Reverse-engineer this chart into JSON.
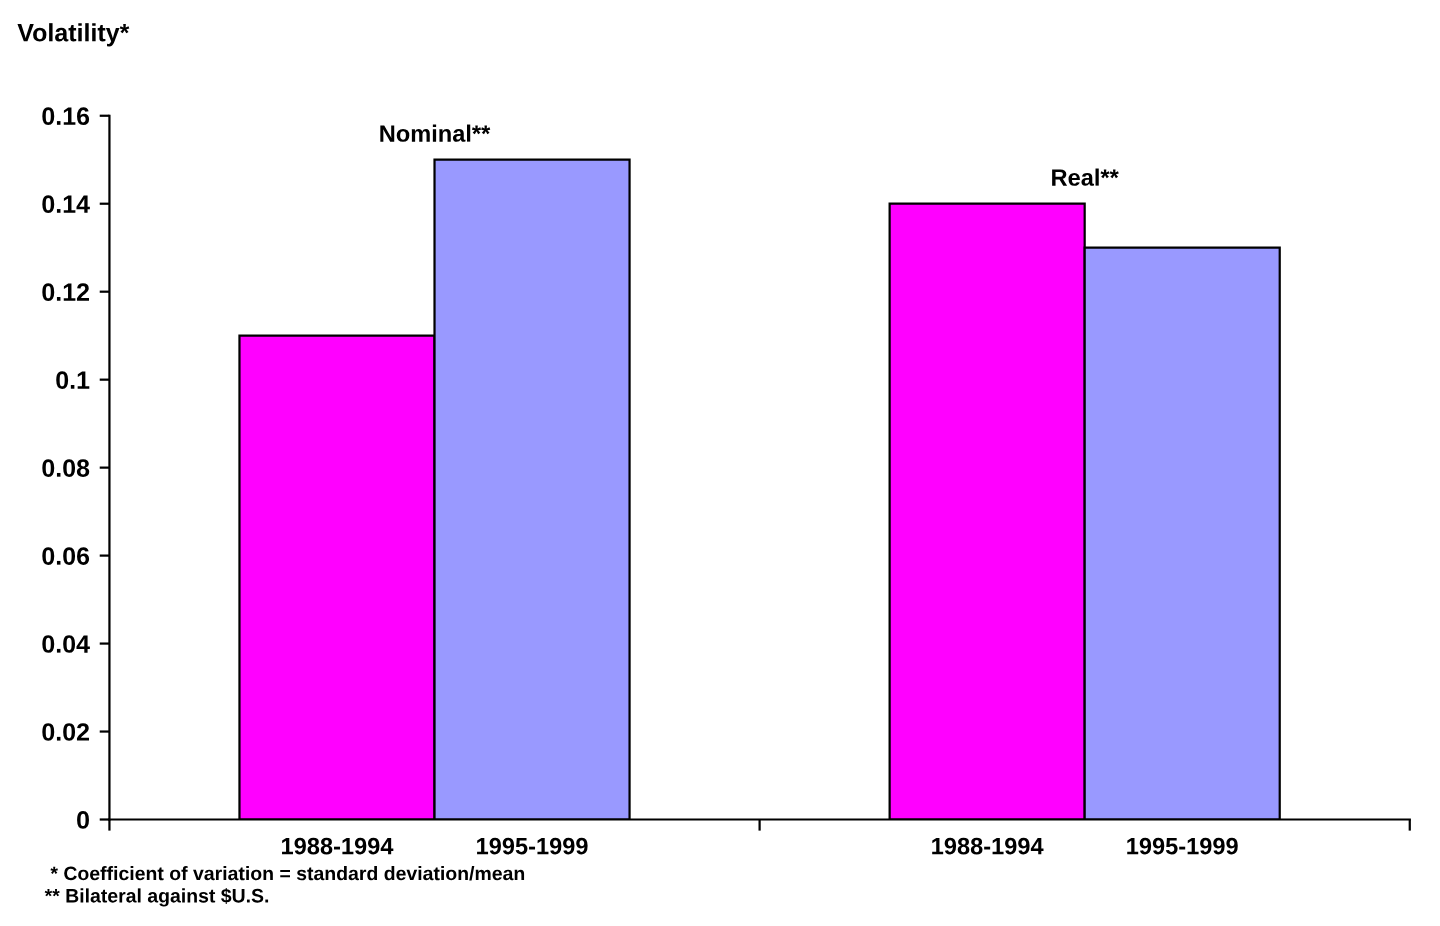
{
  "chart_data": {
    "type": "bar",
    "ylabel": "Volatility*",
    "categories": [
      "Nominal**",
      "Real**"
    ],
    "series": [
      {
        "name": "1988-1994",
        "color": "#ff00ff",
        "values": [
          0.11,
          0.14
        ]
      },
      {
        "name": "1995-1999",
        "color": "#9999ff",
        "values": [
          0.15,
          0.13
        ]
      }
    ],
    "ylim": [
      0,
      0.16
    ],
    "yticks": [
      0,
      0.02,
      0.04,
      0.06,
      0.08,
      0.1,
      0.12,
      0.14,
      0.16
    ],
    "grid": false,
    "legend": false,
    "annotations": [
      "* Coefficient of variation = standard deviation/mean",
      "** Bilateral against $U.S."
    ]
  }
}
